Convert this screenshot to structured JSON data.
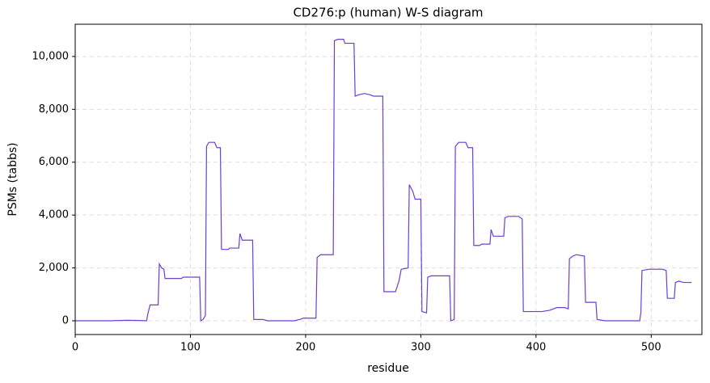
{
  "chart_data": {
    "type": "line",
    "title": "CD276:p (human) W-S diagram",
    "x_label": "residue",
    "y_label": "PSMs (tabbs)",
    "xlim": [
      0,
      544
    ],
    "ylim": [
      -520,
      11220
    ],
    "xticks": [
      0,
      100,
      200,
      300,
      400,
      500
    ],
    "yticks": [
      0,
      {
        "value": 2000,
        "label": "2,000"
      },
      {
        "value": 4000,
        "label": "4,000"
      },
      {
        "value": 6000,
        "label": "6,000"
      },
      {
        "value": 8000,
        "label": "8,000"
      },
      {
        "value": 10000,
        "label": "10,000"
      }
    ],
    "grid": true,
    "x": [
      0,
      30,
      45,
      55,
      62,
      63,
      65,
      72,
      73,
      75,
      77,
      78,
      92,
      94,
      108,
      109,
      111,
      113,
      114,
      116,
      121,
      123,
      126,
      127,
      133,
      134,
      142,
      143,
      145,
      154,
      155,
      163,
      167,
      190,
      195,
      198,
      209,
      210,
      213,
      224,
      225,
      228,
      233,
      234,
      242,
      243,
      246,
      251,
      256,
      259,
      267,
      268,
      278,
      281,
      283,
      289,
      290,
      293,
      295,
      300,
      301,
      305,
      306,
      309,
      325,
      326,
      329,
      330,
      333,
      339,
      341,
      345,
      346,
      351,
      353,
      360,
      361,
      363,
      372,
      373,
      376,
      385,
      388,
      389,
      405,
      412,
      418,
      425,
      428,
      429,
      432,
      435,
      442,
      443,
      452,
      453,
      460,
      490,
      491,
      492,
      498,
      510,
      513,
      514,
      520,
      521,
      524,
      528,
      535
    ],
    "series": [
      {
        "name": "PSMs",
        "color": "#6a3fd6",
        "values": [
          0,
          0,
          20,
          10,
          0,
          250,
          600,
          600,
          2150,
          2000,
          1950,
          1600,
          1600,
          1650,
          1650,
          0,
          50,
          200,
          6600,
          6750,
          6750,
          6550,
          6550,
          2700,
          2700,
          2750,
          2750,
          3300,
          3050,
          3050,
          50,
          50,
          0,
          0,
          50,
          100,
          100,
          2400,
          2500,
          2500,
          10600,
          10650,
          10650,
          10500,
          10500,
          8500,
          8550,
          8600,
          8550,
          8500,
          8500,
          1100,
          1100,
          1500,
          1950,
          2000,
          5150,
          4900,
          4600,
          4600,
          350,
          300,
          1650,
          1700,
          1700,
          0,
          50,
          6600,
          6750,
          6750,
          6550,
          6550,
          2850,
          2850,
          2900,
          2900,
          3450,
          3200,
          3200,
          3900,
          3950,
          3950,
          3850,
          350,
          350,
          400,
          500,
          500,
          450,
          2350,
          2450,
          2500,
          2450,
          700,
          700,
          50,
          0,
          0,
          300,
          1900,
          1950,
          1950,
          1900,
          850,
          850,
          1450,
          1500,
          1450,
          1450
        ]
      }
    ]
  }
}
